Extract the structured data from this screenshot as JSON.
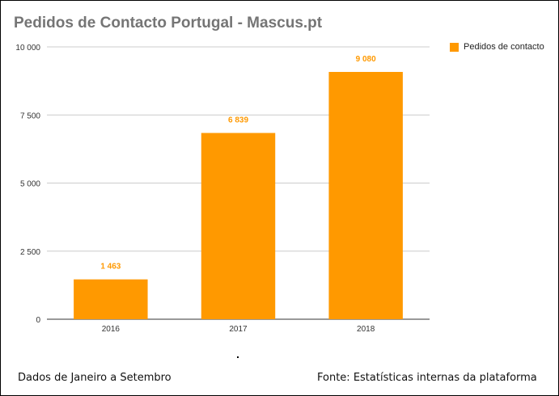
{
  "chart_data": {
    "type": "bar",
    "title": "Pedidos de Contacto Portugal - Mascus.pt",
    "categories": [
      "2016",
      "2017",
      "2018"
    ],
    "series": [
      {
        "name": "Pedidos de contacto",
        "values": [
          1463,
          6839,
          9080
        ]
      }
    ],
    "data_labels": [
      "1 463",
      "6 839",
      "9 080"
    ],
    "y_ticks": [
      0,
      2500,
      5000,
      7500,
      10000
    ],
    "y_tick_labels": [
      "0",
      "2 500",
      "5 000",
      "7 500",
      "10 000"
    ],
    "ylim": [
      0,
      10000
    ],
    "grid": true,
    "legend_position": "top-right",
    "color": "#ff9900"
  },
  "footer": {
    "left": "Dados de Janeiro a Setembro",
    "right": "Fonte: Estatísticas internas da plataforma"
  }
}
